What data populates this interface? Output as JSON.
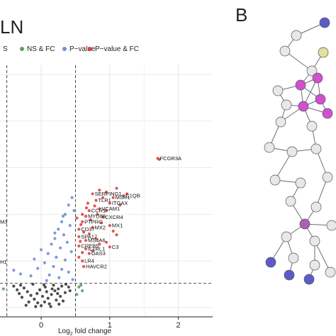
{
  "panel_a": {
    "title_fragment": "LN",
    "legend": [
      {
        "label": "S",
        "color": "#3a3a3a"
      },
      {
        "label": "NS & FC",
        "color": "#5aa05a"
      },
      {
        "label": "P−value",
        "color": "#6d8fd8"
      },
      {
        "label": "P−value & FC",
        "color": "#d94646"
      }
    ]
  },
  "panel_b": {
    "letter": "B"
  },
  "chart_data": {
    "type": "scatter",
    "title": "",
    "xlabel": "Log2 fold change",
    "xlabel_parts": {
      "base": "Log",
      "sub": "2",
      "rest": " fold change"
    },
    "ylabel": "",
    "xlim": [
      -0.6,
      2.5
    ],
    "ylim": [
      -0.5,
      13
    ],
    "xticks": [
      0,
      1,
      2
    ],
    "fc_cutoffs": [
      -0.5,
      0.5
    ],
    "p_cutoff": 1.3,
    "grid": true,
    "series": [
      {
        "name": "P−value & FC",
        "color": "#d94646",
        "points": [
          {
            "x": 1.7,
            "y": 8.0,
            "label": "FCGR3A"
          },
          {
            "x": 1.72,
            "y": 7.95
          },
          {
            "x": 1.2,
            "y": 6.0,
            "label": "C1QB"
          },
          {
            "x": 1.05,
            "y": 5.9,
            "label": "MSR1"
          },
          {
            "x": 1.0,
            "y": 5.6,
            "label": "ITGAX"
          },
          {
            "x": 0.75,
            "y": 6.1,
            "label": "SERPING1"
          },
          {
            "x": 0.8,
            "y": 5.75,
            "label": "TLR1"
          },
          {
            "x": 0.85,
            "y": 5.3,
            "label": "VCAM1"
          },
          {
            "x": 0.7,
            "y": 5.2,
            "label": "CCR1"
          },
          {
            "x": 0.9,
            "y": 4.85,
            "label": "CXCR4"
          },
          {
            "x": 0.65,
            "y": 4.9,
            "label": "MYD88"
          },
          {
            "x": 0.6,
            "y": 4.6,
            "label": "PTPRC"
          },
          {
            "x": 1.0,
            "y": 4.4,
            "label": "MX1"
          },
          {
            "x": 0.75,
            "y": 4.3,
            "label": "MX2"
          },
          {
            "x": 0.55,
            "y": 4.2,
            "label": "CD37"
          },
          {
            "x": 0.55,
            "y": 3.8,
            "label": "SPA17"
          },
          {
            "x": 0.65,
            "y": 3.6,
            "label": "MS4A6"
          },
          {
            "x": 1.0,
            "y": 3.25,
            "label": "C3"
          },
          {
            "x": 0.55,
            "y": 3.3,
            "label": "CREB5"
          },
          {
            "x": 0.65,
            "y": 3.15,
            "label": "IL1RL1"
          },
          {
            "x": 0.7,
            "y": 2.9,
            "label": "OAS3"
          },
          {
            "x": 0.6,
            "y": 2.5,
            "label": "LR4"
          },
          {
            "x": 0.62,
            "y": 2.2,
            "label": "HAVCR2"
          },
          {
            "x": -0.62,
            "y": 4.6,
            "label": "M3"
          },
          {
            "x": -0.62,
            "y": 2.45,
            "label": "H1"
          },
          {
            "x": 0.95,
            "y": 6.2
          },
          {
            "x": 1.1,
            "y": 6.4
          },
          {
            "x": 0.9,
            "y": 5.9
          },
          {
            "x": 0.78,
            "y": 5.45
          },
          {
            "x": 0.68,
            "y": 5.6
          },
          {
            "x": 0.82,
            "y": 5.0
          },
          {
            "x": 0.6,
            "y": 5.0
          },
          {
            "x": 0.95,
            "y": 5.2
          },
          {
            "x": 1.15,
            "y": 5.5
          },
          {
            "x": 0.72,
            "y": 4.7
          },
          {
            "x": 0.58,
            "y": 4.45
          },
          {
            "x": 0.88,
            "y": 4.55
          },
          {
            "x": 0.62,
            "y": 4.05
          },
          {
            "x": 0.7,
            "y": 3.95
          },
          {
            "x": 0.8,
            "y": 3.7
          },
          {
            "x": 0.57,
            "y": 3.55
          },
          {
            "x": 0.85,
            "y": 3.4
          },
          {
            "x": 0.6,
            "y": 2.95
          },
          {
            "x": 0.75,
            "y": 3.05
          },
          {
            "x": 0.55,
            "y": 2.7
          },
          {
            "x": 1.05,
            "y": 4.1
          },
          {
            "x": 1.1,
            "y": 3.9
          },
          {
            "x": 0.95,
            "y": 3.5
          },
          {
            "x": 0.66,
            "y": 5.35
          },
          {
            "x": 0.52,
            "y": 4.8
          },
          {
            "x": 1.25,
            "y": 6.1
          },
          {
            "x": 0.85,
            "y": 6.3
          }
        ]
      },
      {
        "name": "P−value",
        "color": "#6d8fd8",
        "points": [
          {
            "x": 0.45,
            "y": 5.9
          },
          {
            "x": 0.4,
            "y": 5.5
          },
          {
            "x": 0.35,
            "y": 5.0
          },
          {
            "x": 0.3,
            "y": 4.6
          },
          {
            "x": 0.42,
            "y": 4.4
          },
          {
            "x": 0.25,
            "y": 4.2
          },
          {
            "x": 0.33,
            "y": 3.9
          },
          {
            "x": 0.2,
            "y": 3.7
          },
          {
            "x": 0.38,
            "y": 3.5
          },
          {
            "x": 0.15,
            "y": 3.4
          },
          {
            "x": 0.28,
            "y": 3.2
          },
          {
            "x": 0.44,
            "y": 3.0
          },
          {
            "x": 0.1,
            "y": 2.9
          },
          {
            "x": 0.22,
            "y": 2.7
          },
          {
            "x": 0.35,
            "y": 2.55
          },
          {
            "x": 0.05,
            "y": 2.4
          },
          {
            "x": 0.18,
            "y": 2.2
          },
          {
            "x": 0.3,
            "y": 2.05
          },
          {
            "x": -0.05,
            "y": 2.1
          },
          {
            "x": 0.4,
            "y": 1.9
          },
          {
            "x": 0.12,
            "y": 1.75
          },
          {
            "x": 0.26,
            "y": 1.6
          },
          {
            "x": -0.15,
            "y": 1.7
          },
          {
            "x": 0.46,
            "y": 1.5
          },
          {
            "x": -0.3,
            "y": 1.8
          },
          {
            "x": -0.4,
            "y": 2.0
          },
          {
            "x": 0.08,
            "y": 1.45
          },
          {
            "x": 0.32,
            "y": 4.9
          },
          {
            "x": 0.48,
            "y": 5.2
          },
          {
            "x": 0.2,
            "y": 4.0
          },
          {
            "x": -0.1,
            "y": 2.6
          },
          {
            "x": 0.0,
            "y": 3.1
          }
        ]
      },
      {
        "name": "NS & FC",
        "color": "#5aa05a",
        "points": [
          {
            "x": 0.55,
            "y": 1.1
          },
          {
            "x": 0.6,
            "y": 0.9
          },
          {
            "x": 0.52,
            "y": 0.7
          },
          {
            "x": -0.55,
            "y": 1.0
          },
          {
            "x": 0.58,
            "y": 1.2
          }
        ]
      },
      {
        "name": "S",
        "color": "#3a3a3a",
        "points": [
          {
            "x": 0.0,
            "y": 0.1
          },
          {
            "x": 0.05,
            "y": 0.3
          },
          {
            "x": -0.05,
            "y": 0.25
          },
          {
            "x": 0.1,
            "y": 0.5
          },
          {
            "x": -0.1,
            "y": 0.45
          },
          {
            "x": 0.15,
            "y": 0.7
          },
          {
            "x": -0.15,
            "y": 0.65
          },
          {
            "x": 0.2,
            "y": 0.9
          },
          {
            "x": -0.2,
            "y": 0.85
          },
          {
            "x": 0.25,
            "y": 1.0
          },
          {
            "x": -0.25,
            "y": 1.05
          },
          {
            "x": 0.3,
            "y": 1.15
          },
          {
            "x": -0.3,
            "y": 1.2
          },
          {
            "x": 0.35,
            "y": 0.8
          },
          {
            "x": -0.35,
            "y": 0.95
          },
          {
            "x": 0.4,
            "y": 1.1
          },
          {
            "x": 0.02,
            "y": 0.6
          },
          {
            "x": 0.12,
            "y": 0.2
          },
          {
            "x": -0.08,
            "y": 0.05
          },
          {
            "x": 0.22,
            "y": 0.4
          },
          {
            "x": -0.18,
            "y": 0.3
          },
          {
            "x": 0.28,
            "y": 0.6
          },
          {
            "x": -0.28,
            "y": 0.55
          },
          {
            "x": 0.08,
            "y": 0.85
          },
          {
            "x": -0.02,
            "y": 0.95
          },
          {
            "x": 0.18,
            "y": 1.2
          },
          {
            "x": -0.12,
            "y": 1.25
          },
          {
            "x": 0.32,
            "y": 0.35
          },
          {
            "x": 0.42,
            "y": 0.9
          },
          {
            "x": -0.4,
            "y": 1.15
          },
          {
            "x": 0.06,
            "y": 1.1
          },
          {
            "x": 0.14,
            "y": 0.05
          },
          {
            "x": -0.22,
            "y": 0.12
          },
          {
            "x": 0.26,
            "y": 0.18
          },
          {
            "x": 0.36,
            "y": 1.25
          },
          {
            "x": -0.06,
            "y": 0.75
          },
          {
            "x": 0.24,
            "y": 0.75
          },
          {
            "x": -0.32,
            "y": 0.75
          },
          {
            "x": 0.16,
            "y": 1.0
          },
          {
            "x": 0.04,
            "y": 1.22
          }
        ]
      }
    ]
  }
}
